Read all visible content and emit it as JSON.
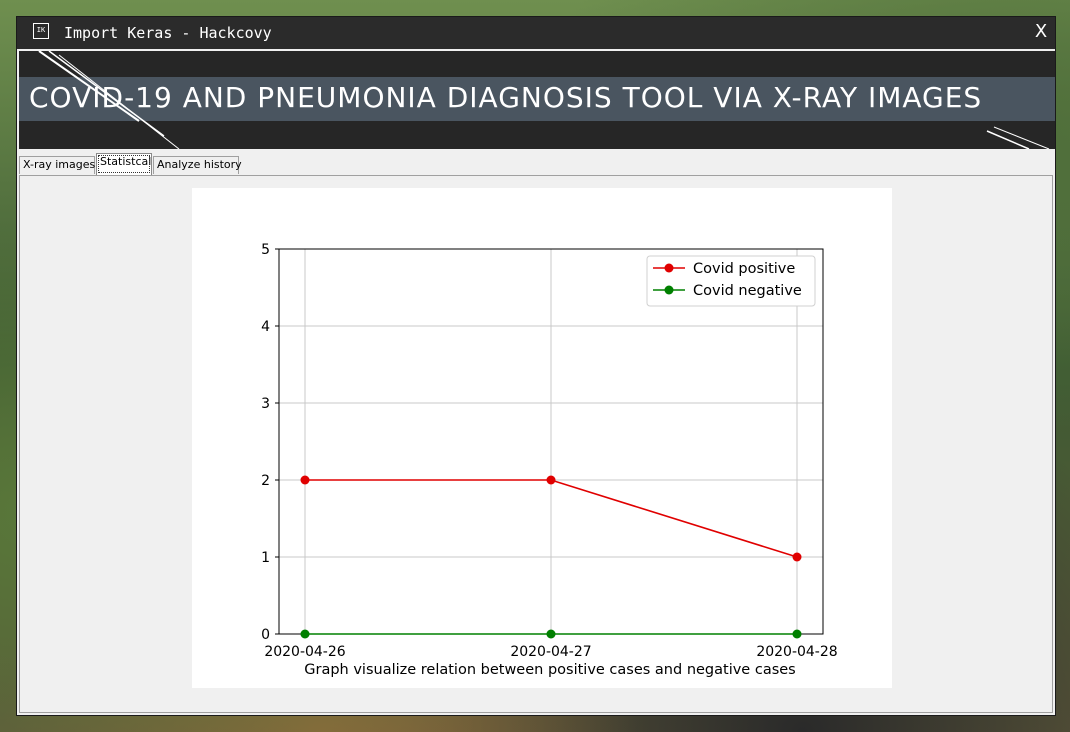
{
  "window": {
    "icon_label": "IK",
    "title": "Import Keras - Hackcovy",
    "close_label": "X"
  },
  "banner": {
    "title": "COVID-19 AND PNEUMONIA DIAGNOSIS TOOL VIA X-RAY IMAGES"
  },
  "tabs": [
    {
      "label": "X-ray images",
      "active": false
    },
    {
      "label": "Statistcal",
      "active": true
    },
    {
      "label": "Analyze history",
      "active": false
    }
  ],
  "chart_data": {
    "type": "line",
    "categories": [
      "2020-04-26",
      "2020-04-27",
      "2020-04-28"
    ],
    "series": [
      {
        "name": "Covid positive",
        "values": [
          2,
          2,
          1
        ],
        "color": "#e00000"
      },
      {
        "name": "Covid negative",
        "values": [
          0,
          0,
          0
        ],
        "color": "#008000"
      }
    ],
    "title": "",
    "xlabel": "Graph visualize relation between positive cases and negative cases",
    "ylabel": "",
    "ylim": [
      0,
      5
    ],
    "yticks": [
      0,
      1,
      2,
      3,
      4,
      5
    ],
    "grid": true,
    "legend": "top-right"
  }
}
